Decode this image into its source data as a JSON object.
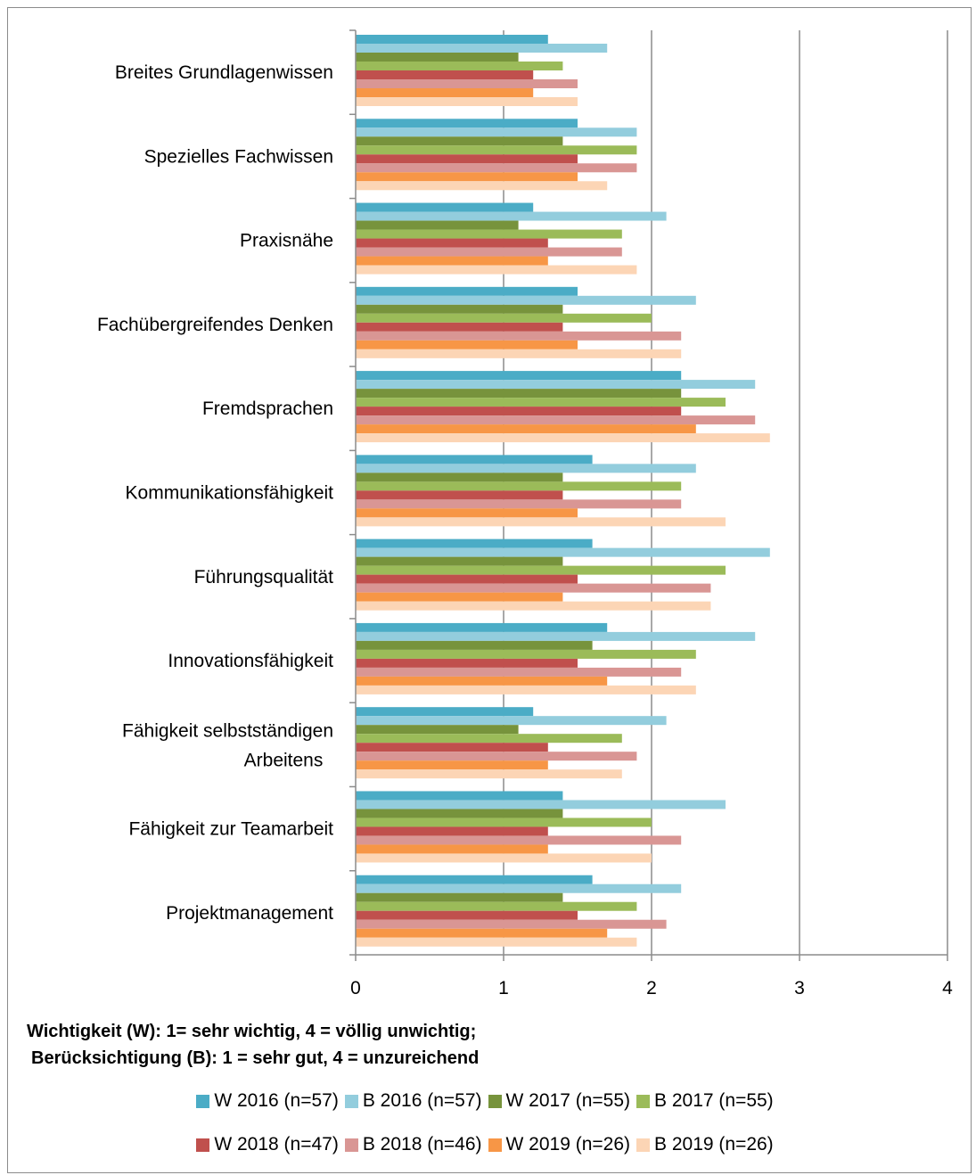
{
  "chart_data": {
    "type": "bar",
    "orientation": "horizontal",
    "categories": [
      "Breites Grundlagenwissen",
      "Spezielles Fachwissen",
      "Praxisnähe",
      "Fachübergreifendes Denken",
      "Fremdsprachen",
      "Kommunikationsfähigkeit",
      "Führungsqualität",
      "Innovationsfähigkeit",
      "Fähigkeit selbstständigen Arbeitens",
      "Fähigkeit zur Teamarbeit",
      "Projektmanagement"
    ],
    "series": [
      {
        "name": "W 2016 (n=57)",
        "color": "#4BACC6",
        "values": [
          1.3,
          1.5,
          1.2,
          1.5,
          2.2,
          1.6,
          1.6,
          1.7,
          1.2,
          1.4,
          1.6
        ]
      },
      {
        "name": "B 2016 (n=57)",
        "color": "#93CDDD",
        "values": [
          1.7,
          1.9,
          2.1,
          2.3,
          2.7,
          2.3,
          2.8,
          2.7,
          2.1,
          2.5,
          2.2
        ]
      },
      {
        "name": "W 2017 (n=55)",
        "color": "#77933C",
        "values": [
          1.1,
          1.4,
          1.1,
          1.4,
          2.2,
          1.4,
          1.4,
          1.6,
          1.1,
          1.4,
          1.4
        ]
      },
      {
        "name": "B 2017 (n=55)",
        "color": "#9BBB59",
        "values": [
          1.4,
          1.9,
          1.8,
          2.0,
          2.5,
          2.2,
          2.5,
          2.3,
          1.8,
          2.0,
          1.9
        ]
      },
      {
        "name": "W 2018 (n=47)",
        "color": "#C0504D",
        "values": [
          1.2,
          1.5,
          1.3,
          1.4,
          2.2,
          1.4,
          1.5,
          1.5,
          1.3,
          1.3,
          1.5
        ]
      },
      {
        "name": "B 2018 (n=46)",
        "color": "#D99694",
        "values": [
          1.5,
          1.9,
          1.8,
          2.2,
          2.7,
          2.2,
          2.4,
          2.2,
          1.9,
          2.2,
          2.1
        ]
      },
      {
        "name": "W 2019 (n=26)",
        "color": "#F79646",
        "values": [
          1.2,
          1.5,
          1.3,
          1.5,
          2.3,
          1.5,
          1.4,
          1.7,
          1.3,
          1.3,
          1.7
        ]
      },
      {
        "name": "B 2019 (n=26)",
        "color": "#FCD5B5",
        "values": [
          1.5,
          1.7,
          1.9,
          2.2,
          2.8,
          2.5,
          2.4,
          2.3,
          1.8,
          2.0,
          1.9
        ]
      }
    ],
    "xlim": [
      0,
      4
    ],
    "xticks": [
      "0",
      "1",
      "2",
      "3",
      "4"
    ],
    "grid": "vertical major gridlines",
    "legend_placement": "bottom",
    "note_lines": [
      "Wichtigkeit (W): 1= sehr wichtig, 4 = völlig unwichtig;",
      "Berücksichtigung (B): 1 = sehr gut, 4 = unzureichend"
    ]
  }
}
